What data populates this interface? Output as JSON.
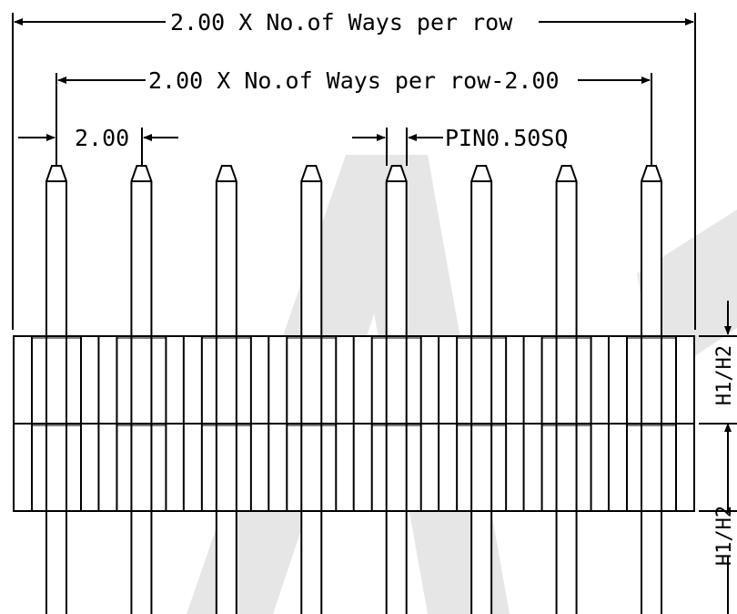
{
  "drawing": {
    "dim_total_width": "2.00 X No.of Ways per row",
    "dim_inner_width": "2.00 X No.of Ways per row-2.00",
    "dim_pitch": "2.00",
    "dim_pin": "PIN0.50SQ",
    "dim_height_top": "H1/H2",
    "dim_height_bottom": "H1/H2",
    "pin_count": 8,
    "row_count": 2,
    "line_color": "#000000",
    "watermark_color": "#e6e6e6"
  }
}
